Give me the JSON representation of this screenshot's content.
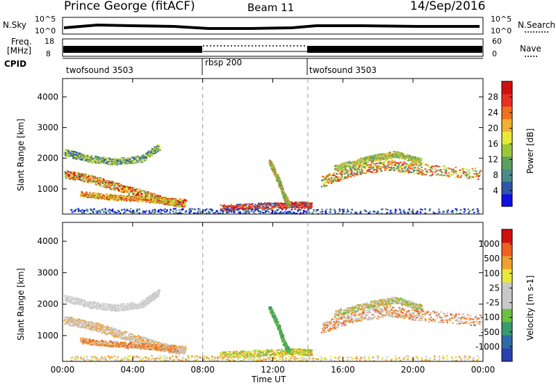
{
  "header": {
    "station": "Prince George (fitACF)",
    "beam": "Beam 11",
    "date": "14/Sep/2016"
  },
  "top_panels": {
    "nsky_label": "N.Sky",
    "nsky_ticks": [
      "10^5",
      "10^0"
    ],
    "nsearch_label": "N.Search",
    "nsearch_ticks": [
      "10^5",
      "10^0"
    ],
    "freq_label": "Freq.",
    "freq_unit": "[MHz]",
    "freq_ticks": [
      "18",
      "8"
    ],
    "nave_label": "Nave",
    "nave_ticks": [
      "60",
      "0"
    ],
    "cpid_label": "CPID",
    "cpid_segments": [
      {
        "label": "twofsound 3503",
        "start": 0,
        "end": 8
      },
      {
        "label": "rbsp 200",
        "start": 8,
        "end": 14
      },
      {
        "label": "twofsound 3503",
        "start": 14,
        "end": 24
      }
    ]
  },
  "chart_data": [
    {
      "type": "heatmap",
      "name": "power",
      "ylabel": "Slant Range [km]",
      "xlabel": "",
      "xlim": [
        0,
        24
      ],
      "ylim": [
        180,
        4600
      ],
      "yticks": [
        "1000",
        "2000",
        "3000",
        "4000"
      ],
      "colorbar_label": "Power [dB]",
      "colorbar_ticks": [
        "4",
        "8",
        "12",
        "16",
        "20",
        "24",
        "28"
      ],
      "colorbar_colors": [
        "#1010e0",
        "#2f57a8",
        "#4a8a8a",
        "#5fa05f",
        "#9bc83a",
        "#e8e83a",
        "#f0b030",
        "#f07020",
        "#e83020",
        "#d01010"
      ],
      "bands": [
        {
          "x": [
            0.1,
            1.5,
            3.0,
            4.5,
            6.0,
            7.0
          ],
          "y": [
            1500,
            1350,
            1100,
            850,
            600,
            550
          ],
          "w": 260,
          "colors": [
            "#f07020",
            "#e8e83a",
            "#5fa05f",
            "#d01010"
          ]
        },
        {
          "x": [
            1.0,
            2.5,
            4.0,
            5.5,
            6.5
          ],
          "y": [
            850,
            760,
            700,
            640,
            580
          ],
          "w": 180,
          "colors": [
            "#e83020",
            "#f07020",
            "#9bc83a",
            "#e8e83a"
          ]
        },
        {
          "x": [
            0.1,
            1.5,
            3.0,
            4.5,
            5.5
          ],
          "y": [
            2200,
            2000,
            1900,
            2000,
            2400
          ],
          "w": 220,
          "colors": [
            "#4a8a8a",
            "#9bc83a",
            "#e8e83a",
            "#2f57a8"
          ]
        },
        {
          "x": [
            9.0,
            11.0,
            13.0,
            14.2
          ],
          "y": [
            400,
            450,
            500,
            480
          ],
          "w": 200,
          "colors": [
            "#2f57a8",
            "#f07020",
            "#d01010",
            "#e83020"
          ]
        },
        {
          "x": [
            11.8,
            12.3,
            12.6,
            12.9
          ],
          "y": [
            1900,
            1300,
            800,
            500
          ],
          "w": 150,
          "colors": [
            "#9bc83a",
            "#f07020",
            "#5fa05f"
          ]
        },
        {
          "x": [
            14.8,
            16.5,
            18.5,
            20.5,
            23.9
          ],
          "y": [
            1250,
            1600,
            1800,
            1650,
            1500
          ],
          "w": 350,
          "colors": [
            "#f07020",
            "#e8e83a",
            "#9bc83a",
            "#4a8a8a",
            "#e83020"
          ]
        },
        {
          "x": [
            15.5,
            17.5,
            19.0,
            20.5
          ],
          "y": [
            1700,
            2000,
            2150,
            1900
          ],
          "w": 200,
          "colors": [
            "#9bc83a",
            "#f0b030",
            "#5fa05f"
          ]
        },
        {
          "x": [
            0.5,
            7.5,
            14,
            23.9
          ],
          "y": [
            300,
            300,
            280,
            300
          ],
          "w": 160,
          "colors": [
            "#1010e0",
            "#2f57a8",
            "#4a8a8a"
          ]
        }
      ]
    },
    {
      "type": "heatmap",
      "name": "velocity",
      "ylabel": "Slant Range [km]",
      "xlabel": "Time UT",
      "xlim": [
        0,
        24
      ],
      "ylim": [
        180,
        4600
      ],
      "yticks": [
        "1000",
        "2000",
        "3000",
        "4000"
      ],
      "xticks": [
        "00:00",
        "04:00",
        "08:00",
        "12:00",
        "16:00",
        "20:00",
        "00:00"
      ],
      "colorbar_label": "Velocity [m s-1]",
      "colorbar_ticks": [
        "1000",
        "500",
        "100",
        "25",
        "-25",
        "-100",
        "-500",
        "-1000"
      ],
      "colorbar_colors": [
        "#2a40b0",
        "#2f6aa8",
        "#3a9a70",
        "#6cc040",
        "#c8c8c8",
        "#c8c8c8",
        "#e8e83a",
        "#f0a030",
        "#f06020",
        "#d01010"
      ],
      "bands": [
        {
          "x": [
            0.1,
            1.5,
            3.0,
            4.5,
            6.0,
            7.0
          ],
          "y": [
            1500,
            1350,
            1100,
            850,
            600,
            550
          ],
          "w": 260,
          "colors": [
            "#c8c8c8",
            "#f0a030",
            "#c8c8c8"
          ]
        },
        {
          "x": [
            1.0,
            2.5,
            4.0,
            5.5,
            6.5
          ],
          "y": [
            850,
            760,
            700,
            640,
            580
          ],
          "w": 180,
          "colors": [
            "#f0a030",
            "#f06020",
            "#c8c8c8"
          ]
        },
        {
          "x": [
            0.1,
            1.5,
            3.0,
            4.5,
            5.5
          ],
          "y": [
            2200,
            2000,
            1900,
            2000,
            2400
          ],
          "w": 220,
          "colors": [
            "#c8c8c8",
            "#d8d8d8"
          ]
        },
        {
          "x": [
            9.0,
            11.0,
            13.0,
            14.2
          ],
          "y": [
            400,
            450,
            500,
            480
          ],
          "w": 200,
          "colors": [
            "#e8e83a",
            "#6cc040",
            "#f0a030"
          ]
        },
        {
          "x": [
            11.8,
            12.3,
            12.6,
            12.9
          ],
          "y": [
            1900,
            1300,
            800,
            500
          ],
          "w": 150,
          "colors": [
            "#6cc040",
            "#3a9a70"
          ]
        },
        {
          "x": [
            14.8,
            16.5,
            18.5,
            20.5,
            23.9
          ],
          "y": [
            1250,
            1600,
            1800,
            1650,
            1500
          ],
          "w": 350,
          "colors": [
            "#c8c8c8",
            "#f0a030",
            "#c8c8c8",
            "#f06020"
          ]
        },
        {
          "x": [
            15.5,
            17.5,
            19.0,
            20.5
          ],
          "y": [
            1700,
            2000,
            2150,
            1900
          ],
          "w": 200,
          "colors": [
            "#f0a030",
            "#6cc040",
            "#c8c8c8"
          ]
        },
        {
          "x": [
            0.5,
            7.5,
            14,
            23.9
          ],
          "y": [
            300,
            300,
            280,
            300
          ],
          "w": 160,
          "colors": [
            "#f0a030",
            "#e8e83a",
            "#c8c8c8"
          ]
        }
      ]
    }
  ]
}
